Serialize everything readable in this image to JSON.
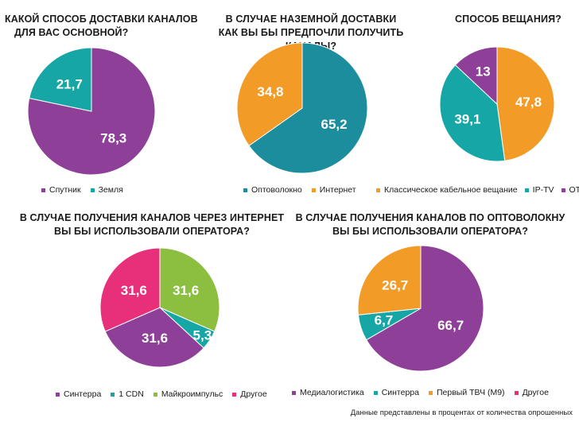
{
  "colors": {
    "purple": "#8e3f98",
    "teal": "#17a6a6",
    "orange": "#f29b27",
    "pink": "#e8307a",
    "green": "#8cbf3f",
    "darkteal": "#1c8d9c"
  },
  "footnote": "Данные представлены в процентах от количества опрошенных",
  "chart_data": [
    {
      "type": "pie",
      "title_lines": [
        "КАКОЙ СПОСОБ ДОСТАВКИ КАНАЛОВ",
        "ДЛЯ ВАС ОСНОВНОЙ?"
      ],
      "slices": [
        {
          "name": "Спутник",
          "value": 78.3,
          "label": "78,3",
          "color": "#8e3f98"
        },
        {
          "name": "Земля",
          "value": 21.7,
          "label": "21,7",
          "color": "#17a6a6"
        }
      ]
    },
    {
      "type": "pie",
      "title_lines": [
        "В СЛУЧАЕ НАЗЕМНОЙ ДОСТАВКИ",
        "КАК ВЫ БЫ ПРЕДПОЧЛИ ПОЛУЧИТЬ КАНАЛЫ?"
      ],
      "slices": [
        {
          "name": "Оптоволокно",
          "value": 65.2,
          "label": "65,2",
          "color": "#1c8d9c"
        },
        {
          "name": "Интернет",
          "value": 34.8,
          "label": "34,8",
          "color": "#f29b27"
        }
      ]
    },
    {
      "type": "pie",
      "title_lines": [
        "СПОСОБ ВЕЩАНИЯ?"
      ],
      "slices": [
        {
          "name": "Классическое кабельное вещание",
          "value": 47.8,
          "label": "47,8",
          "color": "#f29b27"
        },
        {
          "name": "IP-TV",
          "value": 39.1,
          "label": "39,1",
          "color": "#17a6a6"
        },
        {
          "name": "OTT",
          "value": 13,
          "label": "13",
          "color": "#8e3f98"
        }
      ]
    },
    {
      "type": "pie",
      "title_lines": [
        "В СЛУЧАЕ ПОЛУЧЕНИЯ КАНАЛОВ ЧЕРЕЗ ИНТЕРНЕТ",
        "ВЫ БЫ ИСПОЛЬЗОВАЛИ ОПЕРАТОРА?"
      ],
      "slices": [
        {
          "name": "Майкроимпульс",
          "value": 31.6,
          "label": "31,6",
          "color": "#8cbf3f"
        },
        {
          "name": "1 CDN",
          "value": 5.3,
          "label": "5,3",
          "color": "#17a6a6"
        },
        {
          "name": "Синтерра",
          "value": 31.6,
          "label": "31,6",
          "color": "#8e3f98"
        },
        {
          "name": "Другое",
          "value": 31.6,
          "label": "31,6",
          "color": "#e8307a"
        }
      ],
      "legend_order": [
        "Синтерра",
        "1 CDN",
        "Майкроимпульс",
        "Другое"
      ]
    },
    {
      "type": "pie",
      "title_lines": [
        "В СЛУЧАЕ ПОЛУЧЕНИЯ КАНАЛОВ ПО ОПТОВОЛОКНУ",
        "ВЫ БЫ ИСПОЛЬЗОВАЛИ ОПЕРАТОРА?"
      ],
      "slices": [
        {
          "name": "Медиалогистика",
          "value": 66.7,
          "label": "66,7",
          "color": "#8e3f98"
        },
        {
          "name": "Синтерра",
          "value": 6.7,
          "label": "6,7",
          "color": "#17a6a6"
        },
        {
          "name": "Первый ТВЧ (М9)",
          "value": 26.7,
          "label": "26,7",
          "color": "#f29b27"
        },
        {
          "name": "Другое",
          "value": 0,
          "label": "",
          "color": "#e8307a"
        }
      ],
      "legend_order": [
        "Медиалогистика",
        "Синтерра",
        "Первый ТВЧ (М9)",
        "Другое"
      ]
    }
  ]
}
